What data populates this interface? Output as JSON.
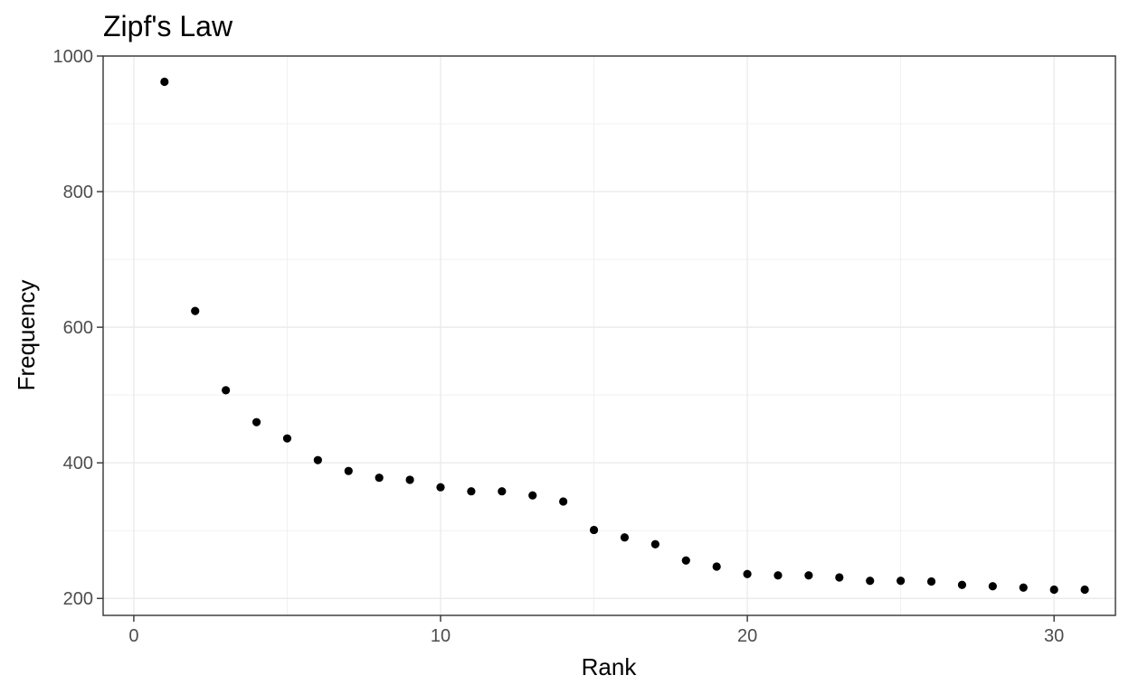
{
  "chart_data": {
    "type": "scatter",
    "title": "Zipf's Law",
    "xlabel": "Rank",
    "ylabel": "Frequency",
    "xlim": [
      -1,
      32
    ],
    "ylim": [
      175,
      1000
    ],
    "xticks": [
      0,
      10,
      20,
      30
    ],
    "xtick_labels": [
      "0",
      "10",
      "20",
      "30"
    ],
    "yticks": [
      200,
      400,
      600,
      800,
      1000
    ],
    "ytick_labels": [
      "200",
      "400",
      "600",
      "800",
      "1000"
    ],
    "grid": true,
    "legend": "none",
    "point_color": "#000000",
    "series": [
      {
        "x": [
          1,
          2,
          3,
          4,
          5,
          6,
          7,
          8,
          9,
          10,
          11,
          12,
          13,
          14,
          15,
          16,
          17,
          18,
          19,
          20,
          21,
          22,
          23,
          24,
          25,
          26,
          27,
          28,
          29,
          30,
          31
        ],
        "y": [
          962,
          624,
          507,
          460,
          436,
          404,
          388,
          378,
          375,
          364,
          358,
          358,
          352,
          343,
          301,
          290,
          280,
          256,
          247,
          236,
          234,
          234,
          231,
          226,
          226,
          225,
          220,
          218,
          216,
          213,
          213
        ]
      }
    ]
  }
}
